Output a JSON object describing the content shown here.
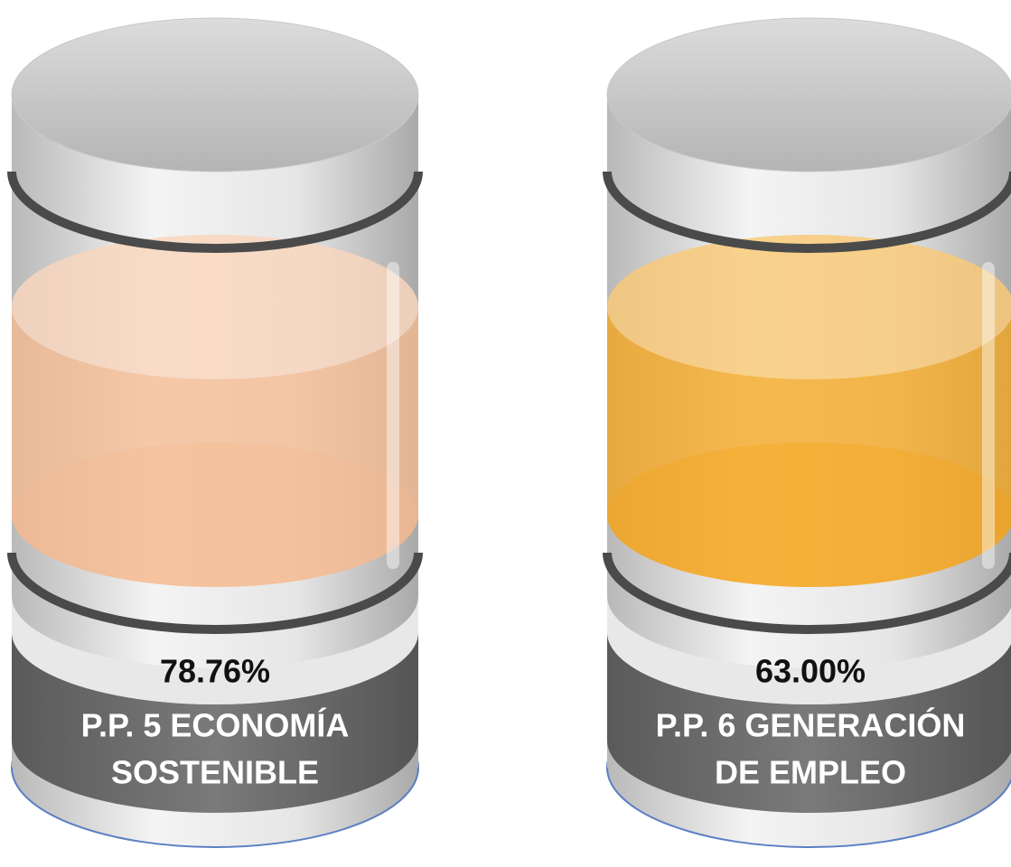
{
  "cylinders": [
    {
      "value_label": "78.76%",
      "label_lines": [
        "P.P. 5 ECONOMÍA",
        "SOSTENIBLE"
      ]
    },
    {
      "value_label": "63.00%",
      "label_lines": [
        "P.P. 6 GENERACIÓN",
        "DE EMPLEO"
      ]
    }
  ]
}
